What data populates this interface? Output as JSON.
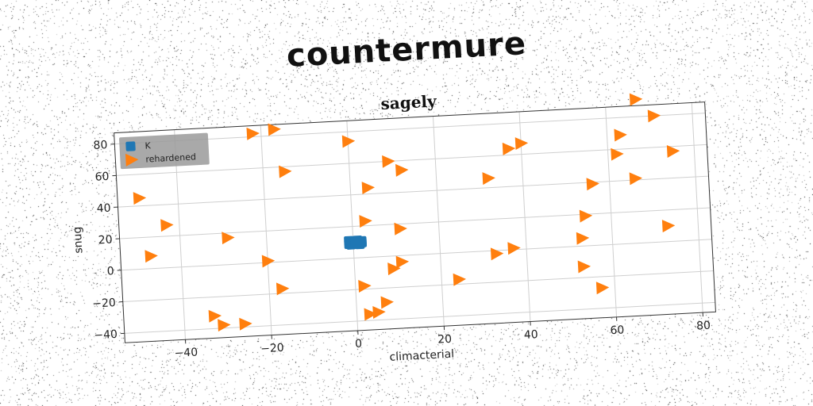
{
  "suptitle": "countermure",
  "chart_data": {
    "type": "scatter",
    "title": "sagely",
    "xlabel": "climacterial",
    "ylabel": "snug",
    "xlim": [
      -54,
      83
    ],
    "ylim": [
      -46,
      87
    ],
    "xticks": [
      -40,
      -20,
      0,
      20,
      40,
      60,
      80
    ],
    "yticks": [
      -40,
      -20,
      0,
      20,
      40,
      60,
      80
    ],
    "grid": true,
    "legend": {
      "placement": "top-left"
    },
    "series": [
      {
        "name": "K",
        "marker": "square",
        "color": "#1f77b4",
        "points": [
          [
            -1.0,
            11.0
          ],
          [
            0.0,
            10.5
          ],
          [
            1.0,
            11.0
          ],
          [
            2.0,
            10.5
          ],
          [
            -1.0,
            9.0
          ],
          [
            0.0,
            9.5
          ],
          [
            1.0,
            9.0
          ],
          [
            2.0,
            9.5
          ],
          [
            -0.5,
            8.5
          ],
          [
            1.5,
            8.5
          ],
          [
            0.5,
            10.0
          ]
        ]
      },
      {
        "name": "rehardened",
        "marker": "triangle-right",
        "color": "#ff7f0e",
        "points": [
          [
            -22,
            82
          ],
          [
            -17,
            84
          ],
          [
            0,
            74
          ],
          [
            -15,
            57
          ],
          [
            -49,
            45
          ],
          [
            -43,
            27
          ],
          [
            -29,
            17
          ],
          [
            -47,
            8
          ],
          [
            -20,
            1
          ],
          [
            -17,
            -17
          ],
          [
            -33,
            -32
          ],
          [
            -31,
            -38
          ],
          [
            -26,
            -38
          ],
          [
            4,
            44
          ],
          [
            3,
            23
          ],
          [
            11,
            17
          ],
          [
            9,
            60
          ],
          [
            12,
            54
          ],
          [
            2,
            -18
          ],
          [
            11,
            -4
          ],
          [
            9,
            -8
          ],
          [
            7,
            -29
          ],
          [
            5,
            -35
          ],
          [
            3,
            -36
          ],
          [
            37,
            64
          ],
          [
            40,
            67
          ],
          [
            32,
            46
          ],
          [
            24,
            -17
          ],
          [
            33,
            -2
          ],
          [
            37,
            1
          ],
          [
            56,
            39
          ],
          [
            54,
            19
          ],
          [
            53,
            5
          ],
          [
            53,
            -13
          ],
          [
            57,
            -27
          ],
          [
            63,
            69
          ],
          [
            62,
            57
          ],
          [
            66,
            41
          ],
          [
            67,
            91
          ],
          [
            71,
            80
          ],
          [
            75,
            57
          ],
          [
            73,
            10
          ]
        ]
      }
    ]
  }
}
